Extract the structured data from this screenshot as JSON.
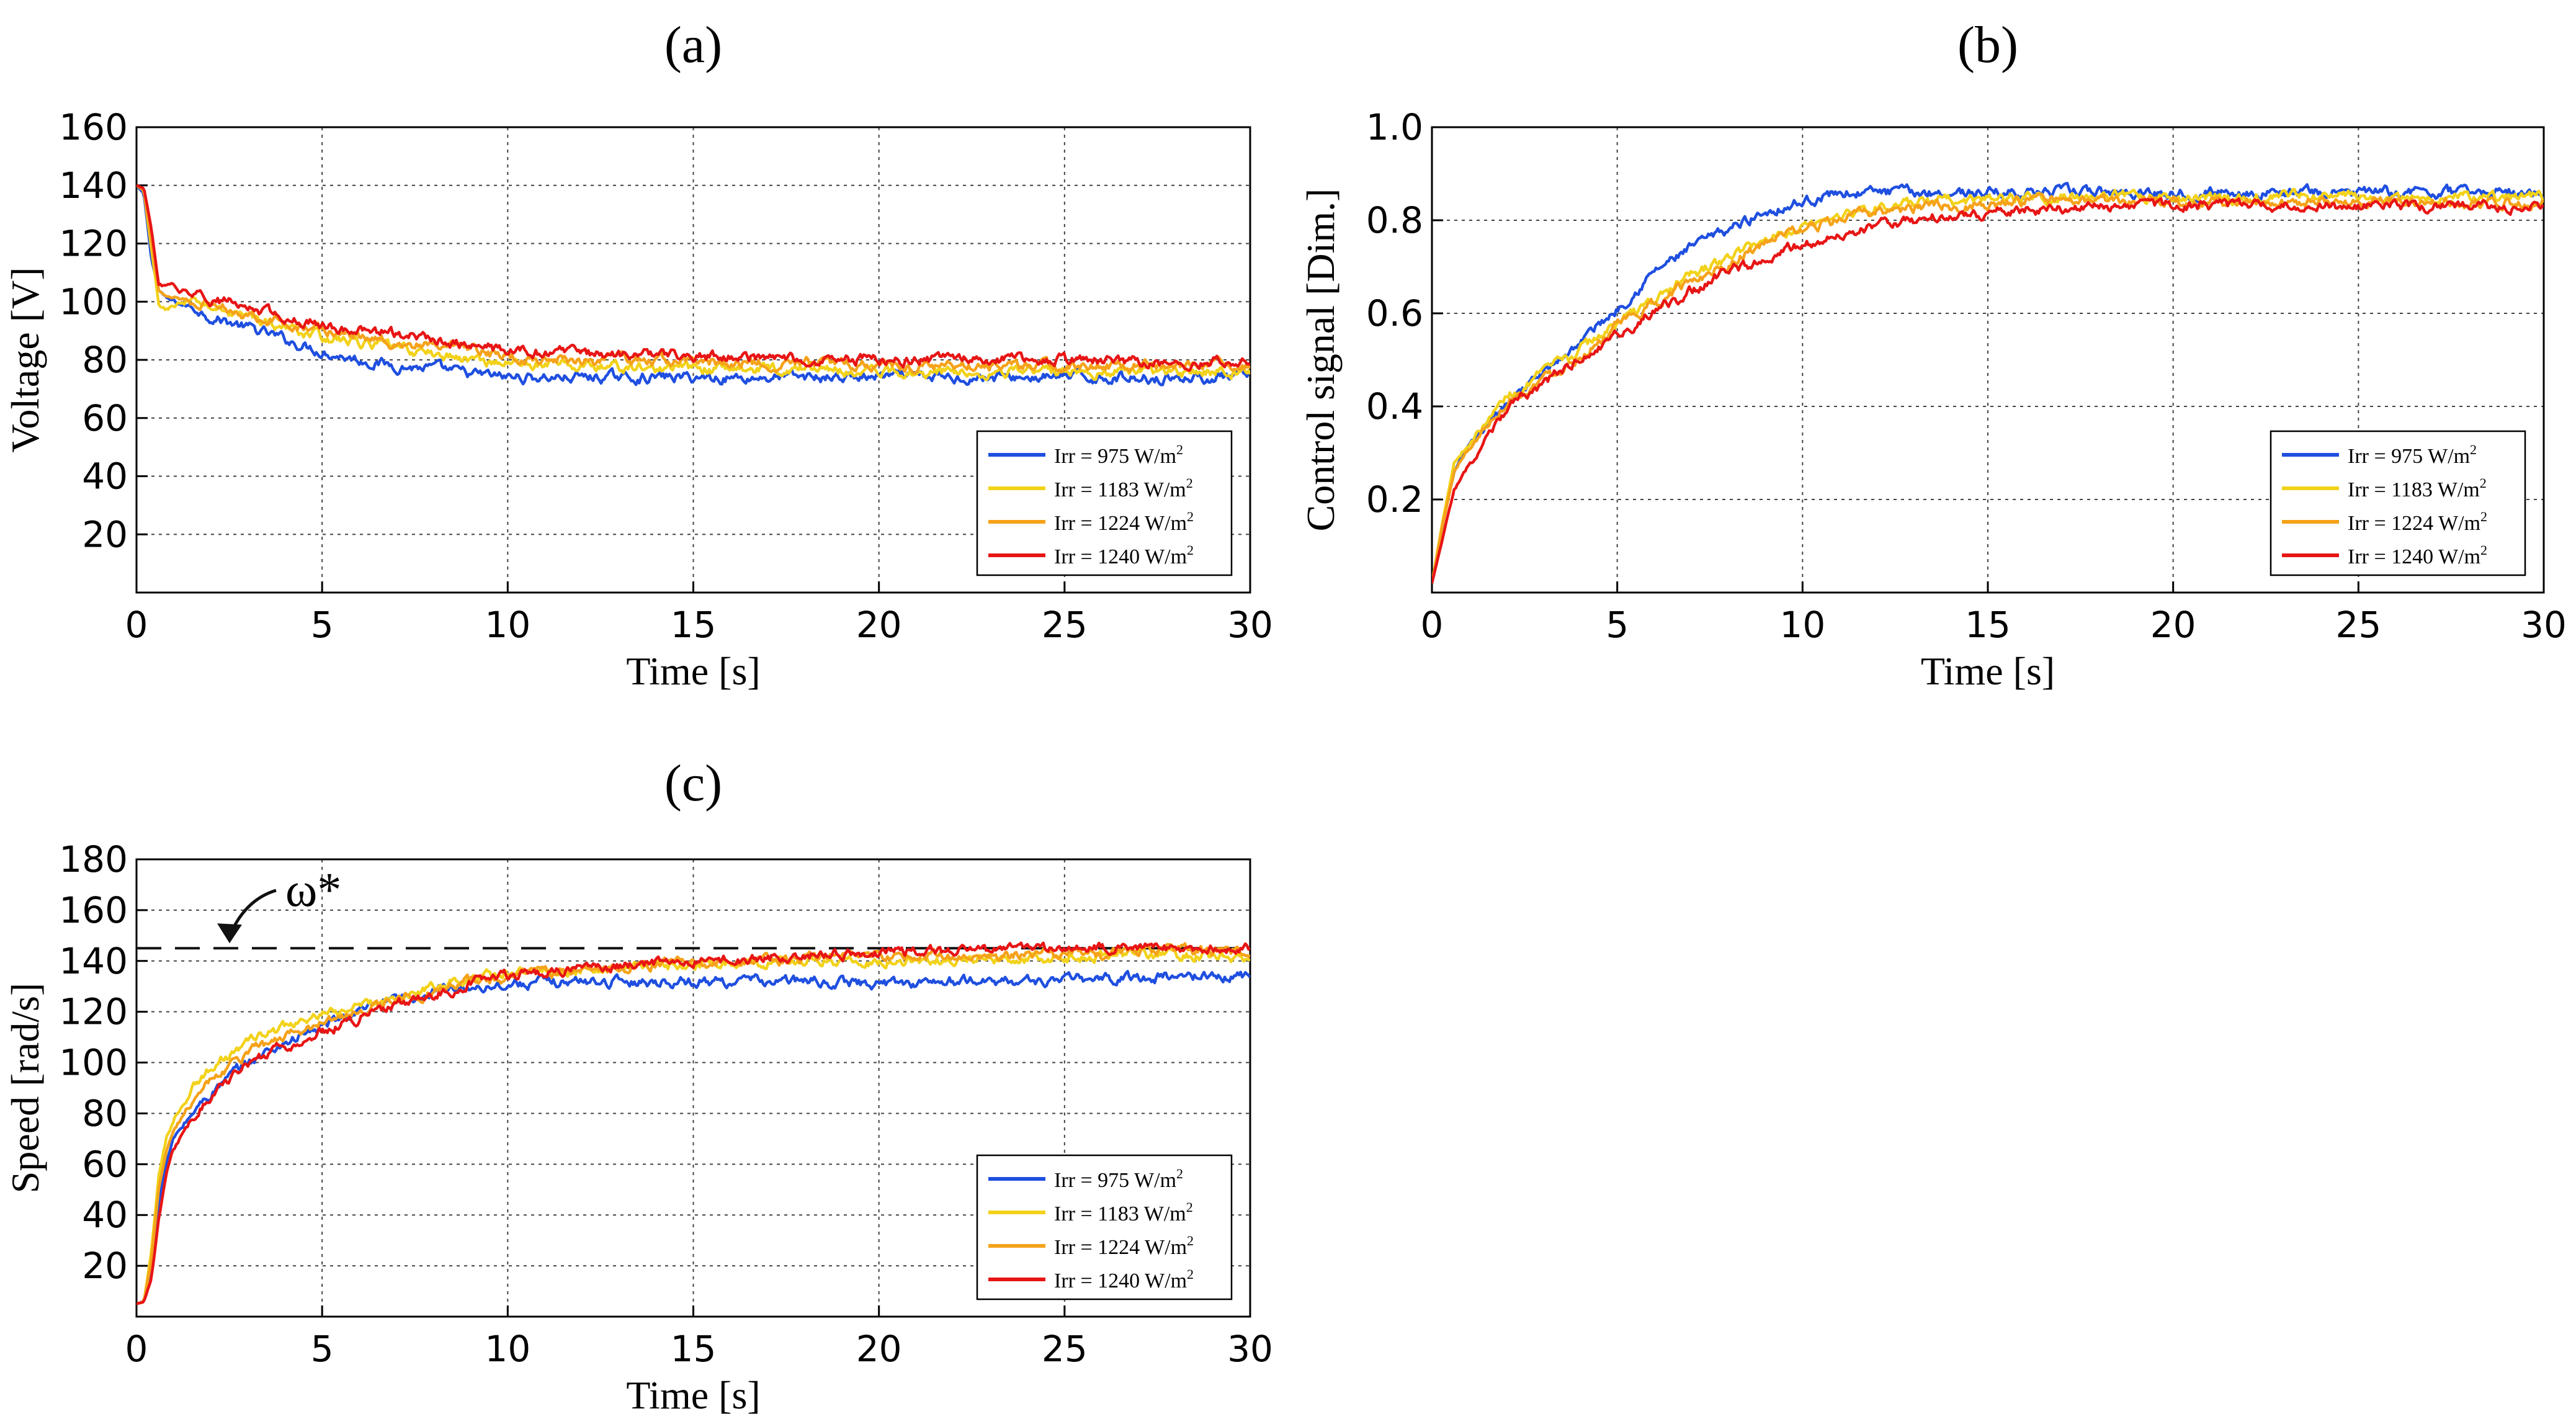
{
  "panels": {
    "a": {
      "label": "(a)"
    },
    "b": {
      "label": "(b)"
    },
    "c": {
      "label": "(c)",
      "annotation": "ω*"
    }
  },
  "legend": {
    "entries": [
      {
        "prefix": "Irr =   975 W/m",
        "sup": "2",
        "color": "#1f4fe0"
      },
      {
        "prefix": "Irr = 1183 W/m",
        "sup": "2",
        "color": "#f2d21a"
      },
      {
        "prefix": "Irr = 1224 W/m",
        "sup": "2",
        "color": "#f5a21a"
      },
      {
        "prefix": "Irr = 1240 W/m",
        "sup": "2",
        "color": "#e81515"
      }
    ]
  },
  "chart_data": [
    {
      "id": "a",
      "type": "line",
      "title": "(a)",
      "xlabel": "Time [s]",
      "ylabel": "Voltage [V]",
      "xlim": [
        0,
        30
      ],
      "ylim": [
        0,
        160
      ],
      "xticks": [
        "0",
        "5",
        "10",
        "15",
        "20",
        "25",
        "30"
      ],
      "yticks": [
        "20",
        "40",
        "60",
        "80",
        "100",
        "120",
        "140",
        "160"
      ],
      "grid": true,
      "legend_position": "lower-right",
      "x": [
        0,
        0.2,
        0.4,
        0.6,
        0.8,
        1,
        1.5,
        2,
        3,
        4,
        5,
        6,
        7,
        8,
        9,
        10,
        12,
        14,
        16,
        18,
        20,
        22,
        24,
        26,
        28,
        30
      ],
      "series": [
        {
          "name": "Irr = 975 W/m2",
          "color": "#1f4fe0",
          "values": [
            140,
            137,
            115,
            104,
            101,
            100,
            98,
            95,
            91,
            87,
            83,
            80,
            78,
            77,
            75,
            74,
            74,
            74,
            74,
            74,
            74,
            74,
            74,
            74,
            74,
            74
          ]
        },
        {
          "name": "Irr = 1183 W/m2",
          "color": "#f2d21a",
          "values": [
            140,
            138,
            118,
            99,
            97,
            99,
            100,
            98,
            95,
            91,
            88,
            86,
            84,
            82,
            80,
            79,
            78,
            77,
            77,
            77,
            76,
            76,
            76,
            76,
            76,
            76
          ]
        },
        {
          "name": "Irr = 1224 W/m2",
          "color": "#f5a21a",
          "values": [
            140,
            138,
            121,
            104,
            102,
            102,
            100,
            99,
            96,
            93,
            90,
            88,
            86,
            84,
            83,
            81,
            80,
            80,
            79,
            79,
            78,
            78,
            78,
            78,
            78,
            78
          ]
        },
        {
          "name": "Irr = 1240 W/m2",
          "color": "#e81515",
          "values": [
            140,
            139,
            125,
            106,
            105,
            105,
            103,
            101,
            98,
            95,
            92,
            90,
            89,
            87,
            85,
            83,
            82,
            82,
            81,
            80,
            80,
            80,
            80,
            80,
            79,
            79
          ]
        }
      ]
    },
    {
      "id": "b",
      "type": "line",
      "title": "(b)",
      "xlabel": "Time [s]",
      "ylabel": "Control signal [Dim.]",
      "xlim": [
        0,
        30
      ],
      "ylim": [
        0,
        1.0
      ],
      "xticks": [
        "0",
        "5",
        "10",
        "15",
        "20",
        "25",
        "30"
      ],
      "yticks": [
        "0.2",
        "0.4",
        "0.6",
        "0.8",
        "1.0"
      ],
      "grid": true,
      "legend_position": "lower-right",
      "x": [
        0,
        0.3,
        0.6,
        1,
        1.5,
        2,
        3,
        4,
        5,
        6,
        7,
        8,
        9,
        10,
        11,
        12,
        14,
        16,
        18,
        20,
        22,
        24,
        26,
        28,
        30
      ],
      "series": [
        {
          "name": "Irr = 975 W/m2",
          "color": "#1f4fe0",
          "values": [
            0.02,
            0.15,
            0.26,
            0.31,
            0.36,
            0.41,
            0.47,
            0.54,
            0.61,
            0.69,
            0.74,
            0.78,
            0.82,
            0.84,
            0.86,
            0.86,
            0.86,
            0.86,
            0.86,
            0.86,
            0.86,
            0.86,
            0.86,
            0.86,
            0.86
          ]
        },
        {
          "name": "Irr = 1183 W/m2",
          "color": "#f2d21a",
          "values": [
            0.02,
            0.16,
            0.28,
            0.32,
            0.37,
            0.42,
            0.47,
            0.52,
            0.58,
            0.63,
            0.68,
            0.72,
            0.76,
            0.79,
            0.81,
            0.83,
            0.84,
            0.85,
            0.85,
            0.85,
            0.85,
            0.85,
            0.85,
            0.85,
            0.85
          ]
        },
        {
          "name": "Irr = 1224 W/m2",
          "color": "#f5a21a",
          "values": [
            0.02,
            0.15,
            0.26,
            0.31,
            0.36,
            0.41,
            0.46,
            0.51,
            0.57,
            0.62,
            0.67,
            0.71,
            0.75,
            0.78,
            0.8,
            0.82,
            0.83,
            0.84,
            0.84,
            0.84,
            0.84,
            0.84,
            0.84,
            0.84,
            0.84
          ]
        },
        {
          "name": "Irr = 1240 W/m2",
          "color": "#e81515",
          "values": [
            0.02,
            0.12,
            0.22,
            0.27,
            0.33,
            0.39,
            0.45,
            0.5,
            0.55,
            0.6,
            0.65,
            0.69,
            0.72,
            0.75,
            0.77,
            0.79,
            0.81,
            0.82,
            0.83,
            0.83,
            0.83,
            0.83,
            0.83,
            0.83,
            0.83
          ]
        }
      ]
    },
    {
      "id": "c",
      "type": "line",
      "title": "(c)",
      "xlabel": "Time [s]",
      "ylabel": "Speed [rad/s]",
      "xlim": [
        0,
        30
      ],
      "ylim": [
        0,
        180
      ],
      "xticks": [
        "0",
        "5",
        "10",
        "15",
        "20",
        "25",
        "30"
      ],
      "yticks": [
        "20",
        "40",
        "60",
        "80",
        "100",
        "120",
        "140",
        "160",
        "180"
      ],
      "grid": true,
      "legend_position": "lower-right",
      "reference_line": {
        "name": "ω*",
        "y": 145,
        "style": "dashed"
      },
      "x": [
        0,
        0.2,
        0.4,
        0.6,
        0.8,
        1,
        1.5,
        2,
        3,
        4,
        5,
        6,
        7,
        8,
        9,
        10,
        12,
        14,
        16,
        18,
        20,
        22,
        24,
        26,
        28,
        30
      ],
      "series": [
        {
          "name": "Irr = 975 W/m2",
          "color": "#1f4fe0",
          "values": [
            5,
            6,
            20,
            45,
            60,
            70,
            80,
            88,
            100,
            108,
            114,
            120,
            124,
            128,
            130,
            131,
            132,
            132,
            132,
            132,
            131,
            132,
            132,
            133,
            134,
            134
          ]
        },
        {
          "name": "Irr = 1183 W/m2",
          "color": "#f2d21a",
          "values": [
            5,
            6,
            25,
            55,
            70,
            78,
            90,
            98,
            108,
            114,
            118,
            122,
            126,
            130,
            133,
            135,
            137,
            138,
            139,
            140,
            140,
            141,
            141,
            142,
            142,
            142
          ]
        },
        {
          "name": "Irr = 1224 W/m2",
          "color": "#f5a21a",
          "values": [
            5,
            6,
            22,
            50,
            65,
            74,
            85,
            94,
            104,
            110,
            116,
            120,
            124,
            128,
            132,
            134,
            137,
            139,
            140,
            141,
            142,
            142,
            143,
            143,
            144,
            144
          ]
        },
        {
          "name": "Irr = 1240 W/m2",
          "color": "#e81515",
          "values": [
            5,
            6,
            15,
            38,
            55,
            65,
            78,
            88,
            99,
            106,
            112,
            118,
            123,
            127,
            131,
            134,
            137,
            139,
            141,
            142,
            143,
            144,
            144,
            145,
            145,
            146
          ]
        }
      ]
    }
  ]
}
